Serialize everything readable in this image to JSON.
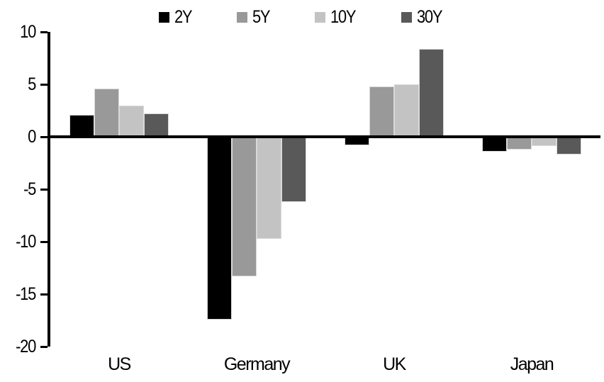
{
  "chart_data": {
    "type": "bar",
    "title": "",
    "categories": [
      "US",
      "Germany",
      "UK",
      "Japan"
    ],
    "series": [
      {
        "name": "2Y",
        "color": "#000000",
        "values": [
          2.1,
          -17.4,
          -0.8,
          -1.4
        ]
      },
      {
        "name": "5Y",
        "color": "#999999",
        "values": [
          4.6,
          -13.3,
          4.8,
          -1.2
        ]
      },
      {
        "name": "10Y",
        "color": "#c3c3c3",
        "values": [
          3.0,
          -9.7,
          5.0,
          -0.9
        ]
      },
      {
        "name": "30Y",
        "color": "#595959",
        "values": [
          2.2,
          -6.2,
          8.4,
          -1.7
        ]
      }
    ],
    "ylim": [
      -20,
      10
    ],
    "yticks": [
      10,
      5,
      0,
      -5,
      -10,
      -15,
      -20
    ],
    "legend_position": "top",
    "grid": false,
    "axis_color": "#000000",
    "background": "#ffffff"
  }
}
